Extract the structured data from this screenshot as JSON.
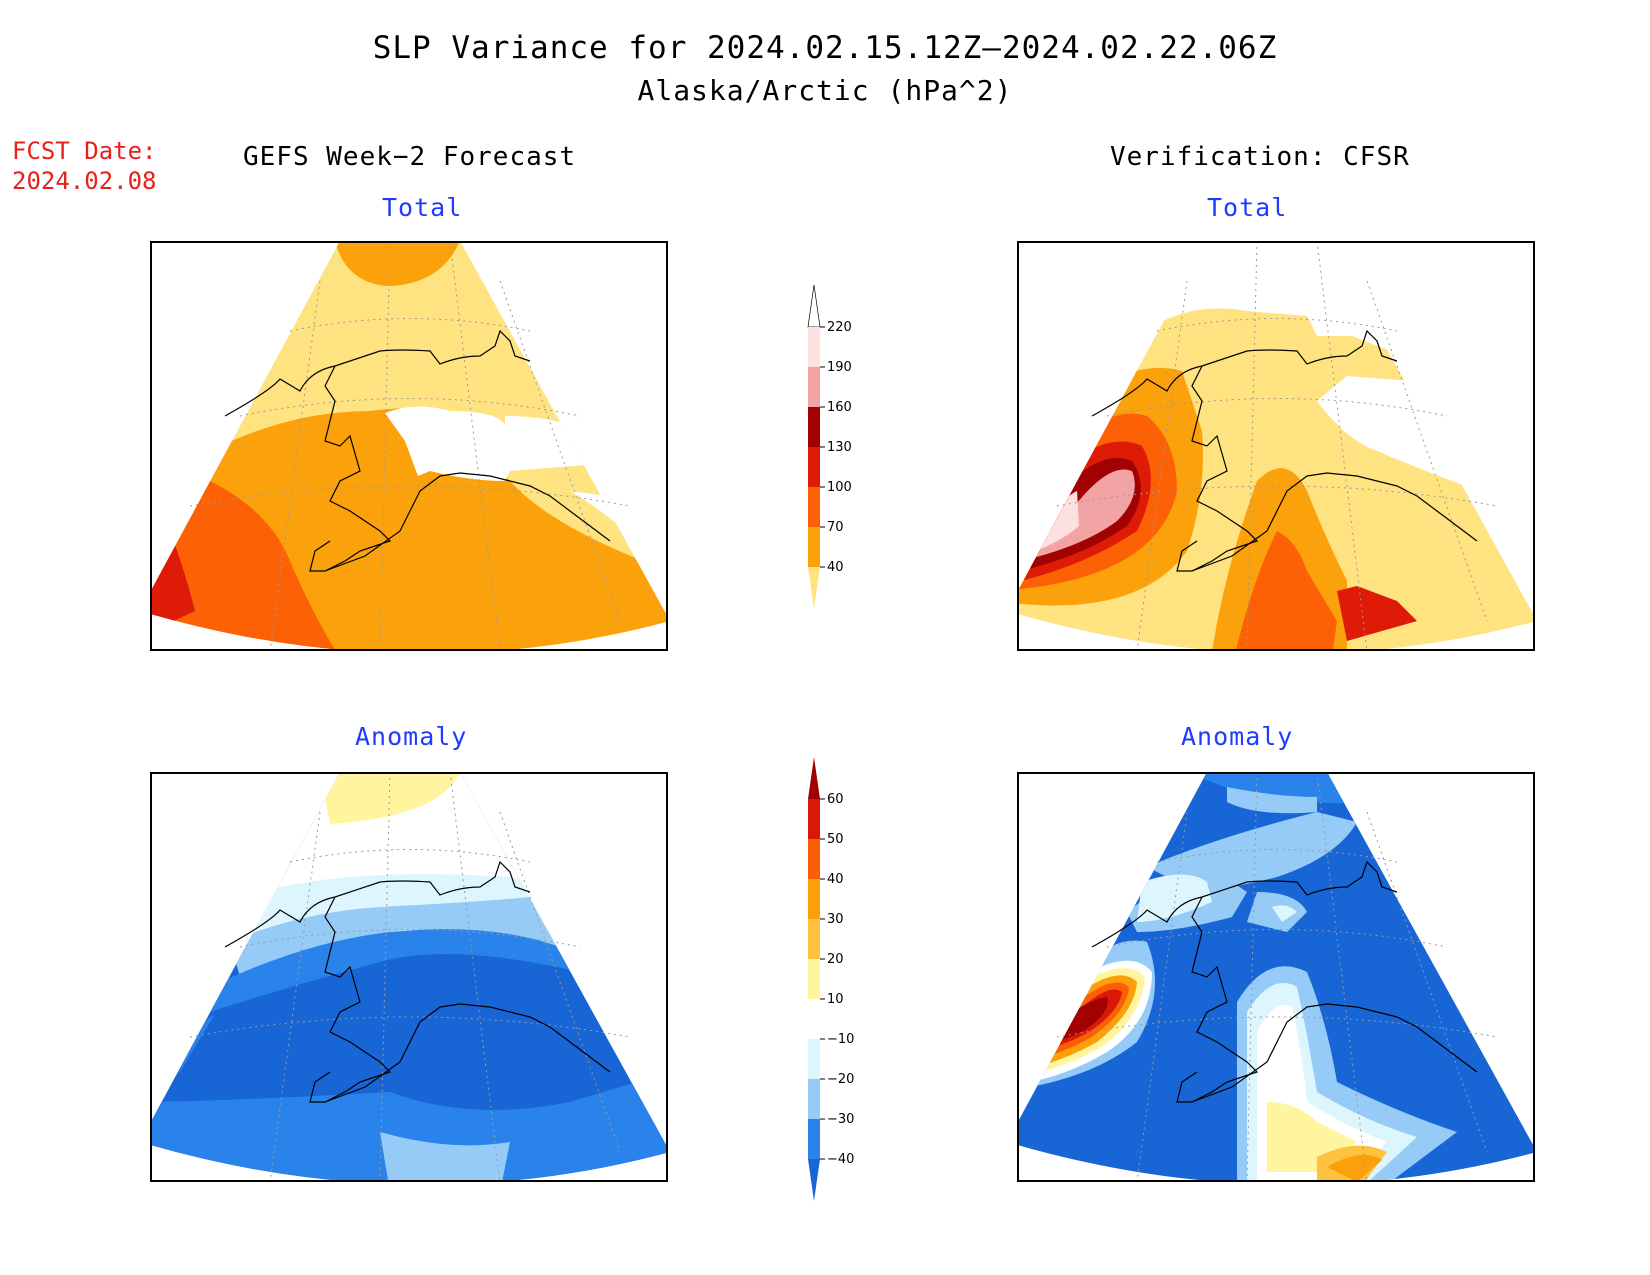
{
  "title": "SLP Variance for 2024.02.15.12Z—2024.02.22.06Z",
  "subtitle": "Alaska/Arctic (hPa^2)",
  "forecast_date": {
    "label": "FCST Date:",
    "value": "2024.02.08"
  },
  "columns": [
    {
      "heading": "GEFS Week−2 Forecast"
    },
    {
      "heading": "Verification: CFSR"
    }
  ],
  "panels": [
    {
      "title": "Total",
      "source": "GEFS Week-2 Forecast",
      "field": "total"
    },
    {
      "title": "Total",
      "source": "Verification: CFSR",
      "field": "total"
    },
    {
      "title": "Anomaly",
      "source": "GEFS Week-2 Forecast",
      "field": "anomaly"
    },
    {
      "title": "Anomaly",
      "source": "Verification: CFSR",
      "field": "anomaly"
    }
  ],
  "colorbars": {
    "total": {
      "labels": [
        "40",
        "70",
        "100",
        "130",
        "160",
        "190",
        "220"
      ],
      "colors": [
        "#fee380",
        "#fba10b",
        "#fc6205",
        "#dd1b06",
        "#a20102",
        "#f2a3a3",
        "#fde0e0",
        "#ffffff"
      ]
    },
    "anomaly": {
      "labels": [
        "−40",
        "−30",
        "−20",
        "−10",
        "10",
        "20",
        "30",
        "40",
        "50",
        "60"
      ],
      "colors": [
        "#1865d6",
        "#2a83ea",
        "#96cbf8",
        "#ddf6fd",
        "#ffffff",
        "#fff59e",
        "#fec140",
        "#fb9f0a",
        "#fb5f06",
        "#d81906",
        "#a20102"
      ]
    }
  },
  "colors": {
    "title_text": "#000000",
    "panel_title_text": "#1f3bff",
    "forecast_date_text": "#e8201c"
  }
}
